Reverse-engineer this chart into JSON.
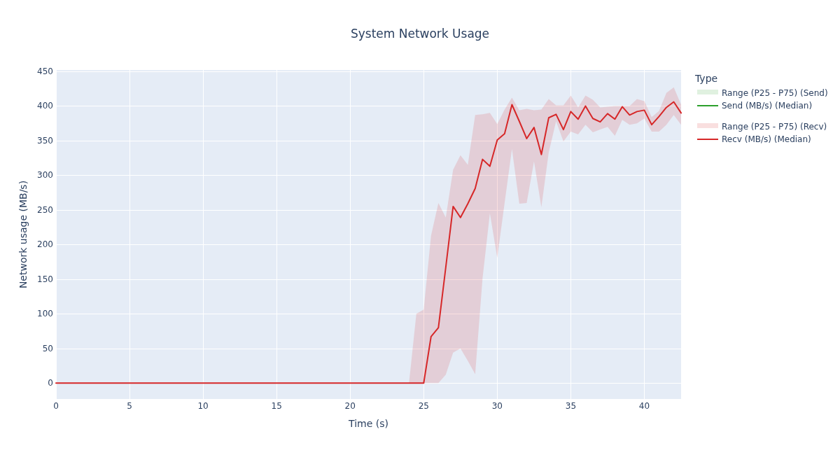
{
  "chart_data": {
    "type": "line",
    "title": "System Network Usage",
    "xlabel": "Time (s)",
    "ylabel": "Network usage (MB/s)",
    "legend_title": "Type",
    "legend": "right",
    "grid": true,
    "annotations": [
      "Range (P25 - P75) (Send)",
      "Range (P25 - P75) (Recv)"
    ],
    "x": [
      0,
      0.5,
      1,
      1.5,
      2,
      2.5,
      3,
      3.5,
      4,
      4.5,
      5,
      5.5,
      6,
      6.5,
      7,
      7.5,
      8,
      8.5,
      9,
      9.5,
      10,
      10.5,
      11,
      11.5,
      12,
      12.5,
      13,
      13.5,
      14,
      14.5,
      15,
      15.5,
      16,
      16.5,
      17,
      17.5,
      18,
      18.5,
      19,
      19.5,
      20,
      20.5,
      21,
      21.5,
      22,
      22.5,
      23,
      23.5,
      24,
      24.5,
      25,
      25.5,
      26,
      26.5,
      27,
      27.5,
      28,
      28.5,
      29,
      29.5,
      30,
      30.5,
      31,
      31.5,
      32,
      32.5,
      33,
      33.5,
      34,
      34.5,
      35,
      35.5,
      36,
      36.5,
      37,
      37.5,
      38,
      38.5,
      39,
      39.5,
      40,
      40.5,
      41,
      41.5,
      42,
      42.5
    ],
    "xlim": [
      0,
      42.5
    ],
    "xticks": [
      0,
      5,
      10,
      15,
      20,
      25,
      30,
      35,
      40
    ],
    "ylim": [
      -23,
      452
    ],
    "yticks": [
      0,
      50,
      100,
      150,
      200,
      250,
      300,
      350,
      400,
      450
    ],
    "series": [
      {
        "name": "Send (MB/s) (Median)",
        "color": "#2ca02c",
        "values": [
          null,
          null,
          null,
          null,
          null,
          null,
          null,
          null,
          null,
          null,
          null,
          null,
          null,
          null,
          null,
          null,
          null,
          null,
          null,
          null,
          null,
          null,
          null,
          null,
          null,
          null,
          null,
          null,
          null,
          null,
          null,
          null,
          null,
          null,
          null,
          null,
          null,
          null,
          null,
          null,
          null,
          null,
          null,
          null,
          null,
          null,
          null,
          null,
          null,
          null,
          null,
          null,
          null,
          null,
          null,
          null,
          null,
          null,
          null,
          null,
          null,
          null,
          null,
          null,
          null,
          null,
          null,
          null,
          null,
          null,
          null,
          null,
          null,
          null,
          null,
          null,
          null,
          null,
          null,
          null,
          null,
          null,
          null,
          null,
          null,
          null
        ],
        "lower": [
          null,
          null,
          null,
          null,
          null,
          null,
          null,
          null,
          null,
          null,
          null,
          null,
          null,
          null,
          null,
          null,
          null,
          null,
          null,
          null,
          null,
          null,
          null,
          null,
          null,
          null,
          null,
          null,
          null,
          null,
          null,
          null,
          null,
          null,
          null,
          null,
          null,
          null,
          null,
          null,
          null,
          null,
          null,
          null,
          null,
          null,
          null,
          null,
          null,
          null,
          null,
          null,
          null,
          null,
          null,
          null,
          null,
          null,
          null,
          null,
          null,
          null,
          null,
          null,
          null,
          null,
          null,
          null,
          null,
          null,
          null,
          null,
          null,
          null,
          null,
          null,
          null,
          null,
          null,
          null,
          null,
          null,
          null,
          null,
          null,
          null
        ],
        "upper": [
          null,
          null,
          null,
          null,
          null,
          null,
          null,
          null,
          null,
          null,
          null,
          null,
          null,
          null,
          null,
          null,
          null,
          null,
          null,
          null,
          null,
          null,
          null,
          null,
          null,
          null,
          null,
          null,
          null,
          null,
          null,
          null,
          null,
          null,
          null,
          null,
          null,
          null,
          null,
          null,
          null,
          null,
          null,
          null,
          null,
          null,
          null,
          null,
          null,
          null,
          null,
          null,
          null,
          null,
          null,
          null,
          null,
          null,
          null,
          null,
          null,
          null,
          null,
          null,
          null,
          null,
          null,
          null,
          null,
          null,
          null,
          null,
          null,
          null,
          null,
          null,
          null,
          null,
          null,
          null,
          null,
          null,
          null,
          null,
          null,
          null
        ]
      },
      {
        "name": "Recv (MB/s) (Median)",
        "color": "#d62728",
        "values": [
          0,
          0,
          0,
          0,
          0,
          0,
          0,
          0,
          0,
          0,
          0,
          0,
          0,
          0,
          0,
          0,
          0,
          0,
          0,
          0,
          0,
          0,
          0,
          0,
          0,
          0,
          0,
          0,
          0,
          0,
          0,
          0,
          0,
          0,
          0,
          0,
          0,
          0,
          0,
          0,
          0,
          0,
          0,
          0,
          0,
          0,
          0,
          0,
          0,
          0,
          0,
          67,
          80,
          167,
          255,
          239,
          259,
          281,
          323,
          313,
          351,
          360,
          402,
          378,
          353,
          369,
          330,
          383,
          388,
          366,
          392,
          381,
          400,
          382,
          377,
          389,
          381,
          399,
          387,
          392,
          394,
          373,
          385,
          398,
          406,
          390
        ],
        "lower": [
          0,
          0,
          0,
          0,
          0,
          0,
          0,
          0,
          0,
          0,
          0,
          0,
          0,
          0,
          0,
          0,
          0,
          0,
          0,
          0,
          0,
          0,
          0,
          0,
          0,
          0,
          0,
          0,
          0,
          0,
          0,
          0,
          0,
          0,
          0,
          0,
          0,
          0,
          0,
          0,
          0,
          0,
          0,
          0,
          0,
          0,
          0,
          0,
          0,
          0,
          0,
          0,
          0,
          12,
          44,
          50,
          32,
          13,
          151,
          245,
          181,
          260,
          338,
          259,
          260,
          320,
          254,
          333,
          378,
          349,
          363,
          359,
          373,
          362,
          366,
          370,
          357,
          380,
          373,
          375,
          382,
          363,
          363,
          373,
          387,
          373
        ],
        "upper": [
          0,
          0,
          0,
          0,
          0,
          0,
          0,
          0,
          0,
          0,
          0,
          0,
          0,
          0,
          0,
          0,
          0,
          0,
          0,
          0,
          0,
          0,
          0,
          0,
          0,
          0,
          0,
          0,
          0,
          0,
          0,
          0,
          0,
          0,
          0,
          0,
          0,
          0,
          0,
          0,
          0,
          0,
          0,
          0,
          0,
          0,
          0,
          0,
          0,
          100,
          106,
          213,
          260,
          239,
          308,
          329,
          315,
          387,
          388,
          390,
          374,
          395,
          412,
          394,
          396,
          394,
          395,
          410,
          401,
          401,
          415,
          398,
          415,
          409,
          398,
          399,
          400,
          400,
          400,
          410,
          407,
          384,
          393,
          419,
          427,
          402
        ]
      }
    ]
  }
}
